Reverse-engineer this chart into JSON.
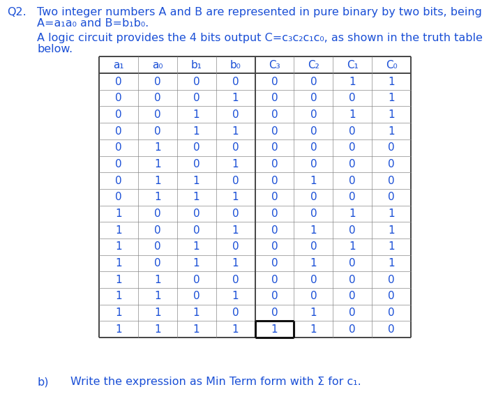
{
  "title_line1": "Q2.  Two integer numbers A and B are represented in pure binary by two bits, being",
  "title_line2_pre": "A=a",
  "title_line2_sub1": "1",
  "title_line2_mid": "a",
  "title_line2_sub2": "0",
  "title_line2_post": " and B=b",
  "title_line2_sub3": "1",
  "title_line2_mid2": "b",
  "title_line2_sub4": "0",
  "title_line2_end": ".",
  "title_line3": "A logic circuit provides the 4 bits output C=c₃c₂c₁c₀, as shown in the truth table",
  "title_line4": "below.",
  "col_headers": [
    "a₁",
    "a₀",
    "b₁",
    "b₀",
    "C₃",
    "C₂",
    "C₁",
    "C₀"
  ],
  "table_data": [
    [
      0,
      0,
      0,
      0,
      0,
      0,
      1,
      1
    ],
    [
      0,
      0,
      0,
      1,
      0,
      0,
      0,
      1
    ],
    [
      0,
      0,
      1,
      0,
      0,
      0,
      1,
      1
    ],
    [
      0,
      0,
      1,
      1,
      0,
      0,
      0,
      1
    ],
    [
      0,
      1,
      0,
      0,
      0,
      0,
      0,
      0
    ],
    [
      0,
      1,
      0,
      1,
      0,
      0,
      0,
      0
    ],
    [
      0,
      1,
      1,
      0,
      0,
      1,
      0,
      0
    ],
    [
      0,
      1,
      1,
      1,
      0,
      0,
      0,
      0
    ],
    [
      1,
      0,
      0,
      0,
      0,
      0,
      1,
      1
    ],
    [
      1,
      0,
      0,
      1,
      0,
      1,
      0,
      1
    ],
    [
      1,
      0,
      1,
      0,
      0,
      0,
      1,
      1
    ],
    [
      1,
      0,
      1,
      1,
      0,
      1,
      0,
      1
    ],
    [
      1,
      1,
      0,
      0,
      0,
      0,
      0,
      0
    ],
    [
      1,
      1,
      0,
      1,
      0,
      0,
      0,
      0
    ],
    [
      1,
      1,
      1,
      0,
      0,
      1,
      0,
      0
    ],
    [
      1,
      1,
      1,
      1,
      1,
      1,
      0,
      0
    ]
  ],
  "footer_b": "b)",
  "footer_text": "Write the expression as Min Term form with Σ for c₁.",
  "text_color": "#1a4fd6",
  "table_num_color": "#1a4fd6",
  "bg_color": "#ffffff",
  "grid_color": "#888888",
  "font_size_title": 11.5,
  "font_size_table": 11,
  "font_size_footer": 11.5
}
